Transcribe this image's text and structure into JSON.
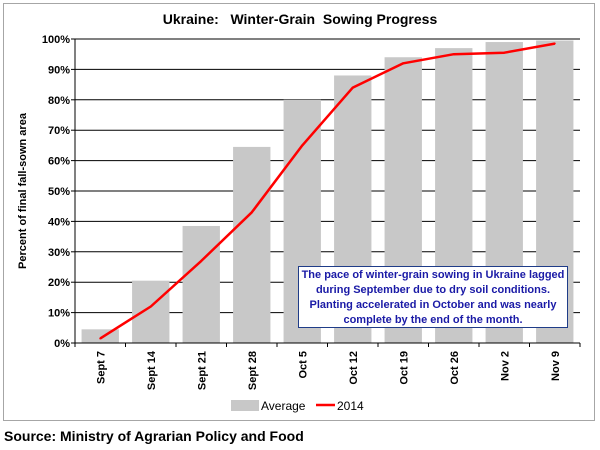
{
  "chart_data": {
    "type": "bar",
    "title": "Ukraine:   Winter-Grain  Sowing Progress",
    "xlabel": "",
    "ylabel": "Percent of final fall-sown area",
    "ylim": [
      0,
      100
    ],
    "yticks": [
      0,
      10,
      20,
      30,
      40,
      50,
      60,
      70,
      80,
      90,
      100
    ],
    "ytick_labels": [
      "0%",
      "10%",
      "20%",
      "30%",
      "40%",
      "50%",
      "60%",
      "70%",
      "80%",
      "90%",
      "100%"
    ],
    "grid": true,
    "legend": "bottom",
    "categories": [
      "Sept 7",
      "Sept 14",
      "Sept 21",
      "Sept 28",
      "Oct 5",
      "Oct 12",
      "Oct 19",
      "Oct 26",
      "Nov 2",
      "Nov 9"
    ],
    "series": [
      {
        "name": "Average",
        "type": "bar",
        "color": "#c8c8c8",
        "values": [
          4.5,
          20.5,
          38.5,
          64.5,
          80,
          88,
          94,
          97,
          99,
          99.5
        ]
      },
      {
        "name": "2014",
        "type": "line",
        "color": "#ff0000",
        "values": [
          1.5,
          12,
          27,
          43,
          65,
          84,
          92,
          95,
          95.5,
          98.5
        ]
      }
    ],
    "annotation": "The pace of winter-grain sowing in Ukraine lagged during September due to dry soil conditions.  Planting accelerated in October and was nearly complete by the end of the month."
  },
  "source": "Source: Ministry of Agrarian Policy and Food"
}
